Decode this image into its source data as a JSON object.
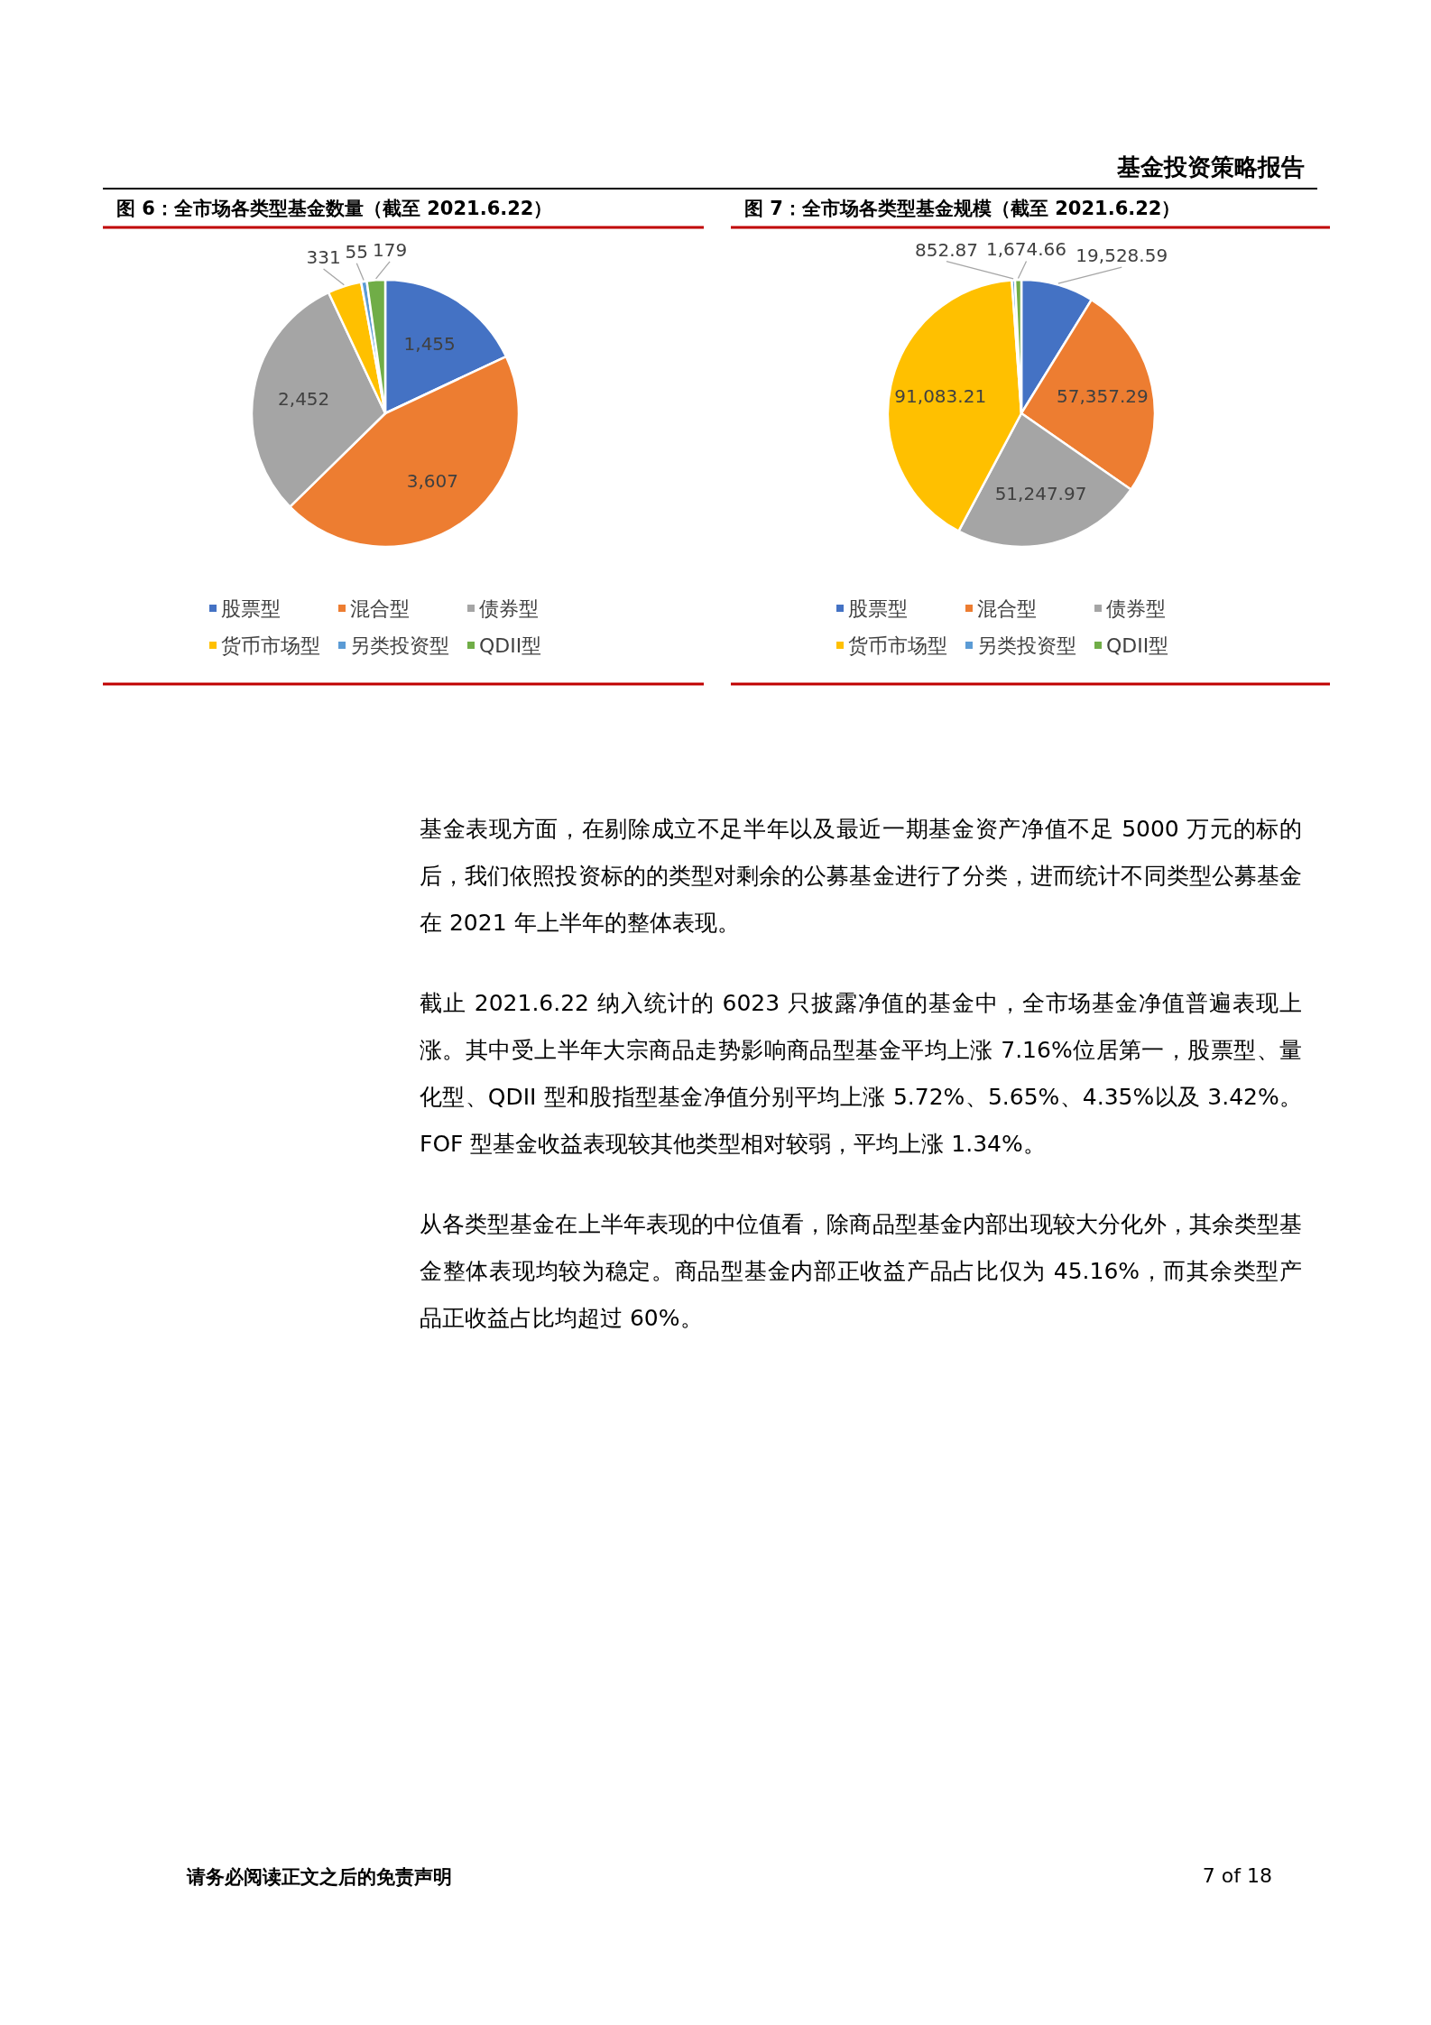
{
  "chart_data": [
    {
      "type": "pie",
      "title": "图 6：全市场各类型基金数量（截至 2021.6.22）",
      "categories": [
        "股票型",
        "混合型",
        "债券型",
        "货币市场型",
        "另类投资型",
        "QDII型"
      ],
      "values": [
        1455,
        3607,
        2452,
        331,
        55,
        179
      ],
      "value_labels": [
        "1,455",
        "3,607",
        "2,452",
        "331",
        "55",
        "179"
      ],
      "colors": [
        "#4472c4",
        "#ed7d31",
        "#a5a5a5",
        "#ffc000",
        "#5b9bd5",
        "#70ad47"
      ],
      "legend": "bottom"
    },
    {
      "type": "pie",
      "title": "图 7：全市场各类型基金规模（截至 2021.6.22）",
      "categories": [
        "股票型",
        "混合型",
        "债券型",
        "货币市场型",
        "另类投资型",
        "QDII型"
      ],
      "values": [
        19528.59,
        57357.29,
        51247.97,
        91083.21,
        852.87,
        1674.66
      ],
      "value_labels": [
        "19,528.59",
        "57,357.29",
        "51,247.97",
        "91,083.21",
        "852.87",
        "1,674.66"
      ],
      "colors": [
        "#4472c4",
        "#ed7d31",
        "#a5a5a5",
        "#ffc000",
        "#5b9bd5",
        "#70ad47"
      ],
      "legend": "bottom"
    },
    {
      "type": "other",
      "annotations": [
        "基金投资策略报告",
        "基金表现方面，在剔除成立不足半年以及最近一期基金资产净值不足 5000 万元的标的后，我们依照投资标的的类型对剩余的公募基金进行了分类，进而统计不同类型公募基金在 2021 年上半年的整体表现。",
        "截止 2021.6.22 纳入统计的 6023 只披露净值的基金中，全市场基金净值普遍表现上涨。其中受上半年大宗商品走势影响商品型基金平均上涨 7.16%位居第一，股票型、量化型、QDII 型和股指型基金净值分别平均上涨 5.72%、5.65%、4.35%以及 3.42%。FOF 型基金收益表现较其他类型相对较弱，平均上涨 1.34%。",
        "从各类型基金在上半年表现的中位值看，除商品型基金内部出现较大分化外，其余类型基金整体表现均较为稳定。商品型基金内部正收益产品占比仅为 45.16%，而其余类型产品正收益占比均超过 60%。",
        "请务必阅读正文之后的免责声明",
        "7 of 18"
      ]
    }
  ]
}
